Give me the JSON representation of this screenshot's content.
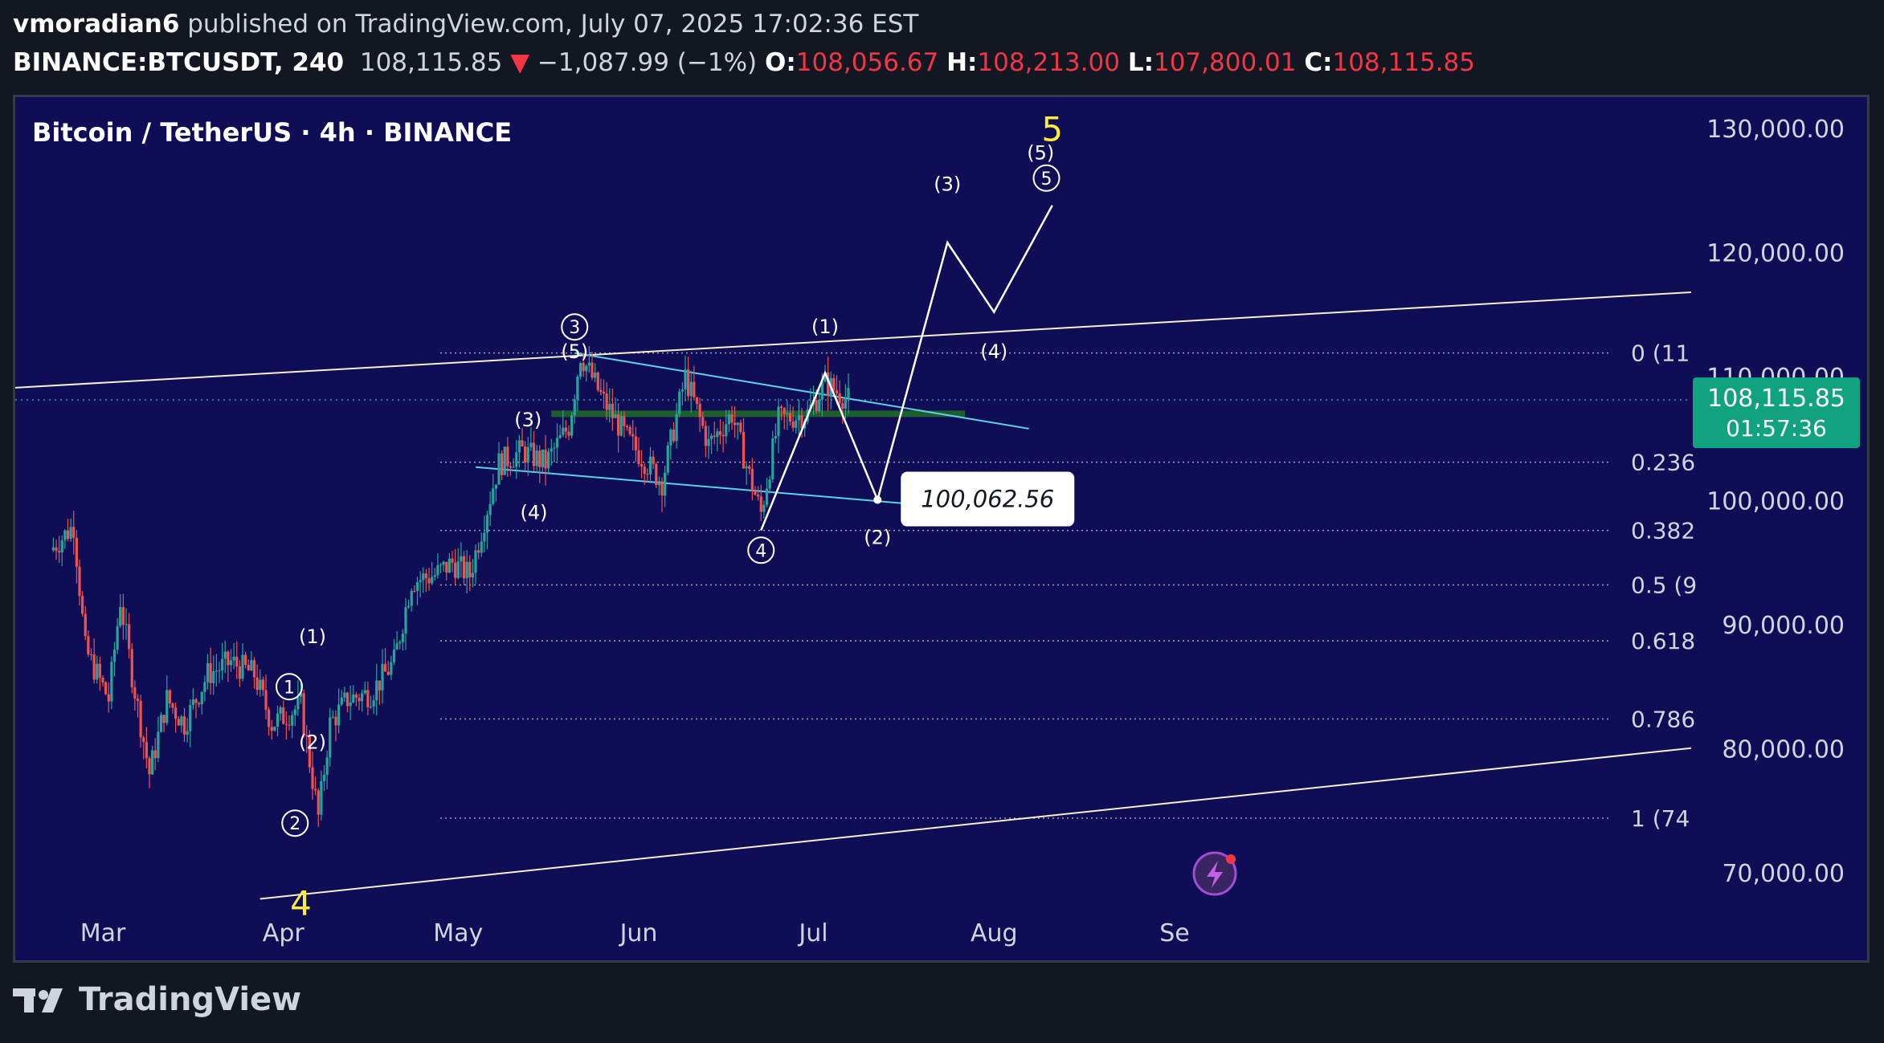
{
  "header": {
    "author": "vmoradian6",
    "published_text": "published on TradingView.com, July 07, 2025 17:02:36 EST",
    "symbol": "BINANCE:BTCUSDT, 240",
    "last": "108,115.85",
    "change_arrow": "▼",
    "change": "−1,087.99 (−1%)",
    "o_label": "O:",
    "o": "108,056.67",
    "h_label": "H:",
    "h": "108,213.00",
    "l_label": "L:",
    "l": "107,800.01",
    "c_label": "C:",
    "c": "108,115.85"
  },
  "chart_data": {
    "type": "candlestick",
    "title": "Bitcoin / TetherUS · 4h · BINANCE",
    "x_ticks": [
      "Mar",
      "Apr",
      "May",
      "Jun",
      "Jul",
      "Aug",
      "Se"
    ],
    "y_ticks": [
      "70,000.00",
      "80,000.00",
      "90,000.00",
      "100,000.00",
      "110,000.00",
      "120,000.00",
      "130,000.00"
    ],
    "ylim": [
      66000,
      133000
    ],
    "price_series": [
      {
        "date": "2025-02-20",
        "price": 96000
      },
      {
        "date": "2025-02-24",
        "price": 98000
      },
      {
        "date": "2025-02-26",
        "price": 88000
      },
      {
        "date": "2025-03-02",
        "price": 84000
      },
      {
        "date": "2025-03-04",
        "price": 92000
      },
      {
        "date": "2025-03-06",
        "price": 86000
      },
      {
        "date": "2025-03-09",
        "price": 78000
      },
      {
        "date": "2025-03-12",
        "price": 84000
      },
      {
        "date": "2025-03-15",
        "price": 82000
      },
      {
        "date": "2025-03-19",
        "price": 86000
      },
      {
        "date": "2025-03-23",
        "price": 87000
      },
      {
        "date": "2025-03-27",
        "price": 86000
      },
      {
        "date": "2025-03-30",
        "price": 82000
      },
      {
        "date": "2025-04-04",
        "price": 83500
      },
      {
        "date": "2025-04-07",
        "price": 74500
      },
      {
        "date": "2025-04-09",
        "price": 82000
      },
      {
        "date": "2025-04-12",
        "price": 84000
      },
      {
        "date": "2025-04-16",
        "price": 84500
      },
      {
        "date": "2025-04-20",
        "price": 87000
      },
      {
        "date": "2025-04-23",
        "price": 93500
      },
      {
        "date": "2025-04-27",
        "price": 94000
      },
      {
        "date": "2025-04-30",
        "price": 95000
      },
      {
        "date": "2025-05-03",
        "price": 94000
      },
      {
        "date": "2025-05-08",
        "price": 103000
      },
      {
        "date": "2025-05-12",
        "price": 104000
      },
      {
        "date": "2025-05-16",
        "price": 103000
      },
      {
        "date": "2025-05-20",
        "price": 106000
      },
      {
        "date": "2025-05-22",
        "price": 111800
      },
      {
        "date": "2025-05-26",
        "price": 108000
      },
      {
        "date": "2025-05-30",
        "price": 105000
      },
      {
        "date": "2025-06-05",
        "price": 101500
      },
      {
        "date": "2025-06-09",
        "price": 110000
      },
      {
        "date": "2025-06-13",
        "price": 104500
      },
      {
        "date": "2025-06-17",
        "price": 107000
      },
      {
        "date": "2025-06-20",
        "price": 102000
      },
      {
        "date": "2025-06-22",
        "price": 99000
      },
      {
        "date": "2025-06-25",
        "price": 106500
      },
      {
        "date": "2025-06-30",
        "price": 107000
      },
      {
        "date": "2025-07-03",
        "price": 109500
      },
      {
        "date": "2025-07-07",
        "price": 108116
      }
    ],
    "last_price": "108,115.85",
    "countdown": "01:57:36",
    "support_zone_price": 107000,
    "fib_levels": [
      {
        "label": "0 (11",
        "price": 111900
      },
      {
        "label": "0.236",
        "price": 103100
      },
      {
        "label": "0.382",
        "price": 97600
      },
      {
        "label": "0.5 (9",
        "price": 93200
      },
      {
        "label": "0.618",
        "price": 88700
      },
      {
        "label": "0.786",
        "price": 82400
      },
      {
        "label": "1 (74",
        "price": 74400
      }
    ],
    "price_label": "100,062.56",
    "wave_labels": {
      "circled": [
        {
          "text": "1",
          "date": "2025-04-02",
          "price": 85000
        },
        {
          "text": "2",
          "date": "2025-04-03",
          "price": 74000
        },
        {
          "text": "3",
          "date": "2025-05-21",
          "price": 114000
        },
        {
          "text": "4",
          "date": "2025-06-22",
          "price": 96000
        },
        {
          "text": "5",
          "date": "2025-08-10",
          "price": 126000
        }
      ],
      "parenthesized": [
        {
          "text": "(1)",
          "date": "2025-04-06",
          "price": 88500
        },
        {
          "text": "(2)",
          "date": "2025-04-06",
          "price": 80000
        },
        {
          "text": "(3)",
          "date": "2025-05-13",
          "price": 106000
        },
        {
          "text": "(4)",
          "date": "2025-05-14",
          "price": 98500
        },
        {
          "text": "(5)",
          "date": "2025-05-21",
          "price": 111500
        },
        {
          "text": "(1)",
          "date": "2025-07-03",
          "price": 113500
        },
        {
          "text": "(2)",
          "date": "2025-07-12",
          "price": 96500
        },
        {
          "text": "(3)",
          "date": "2025-07-24",
          "price": 125000
        },
        {
          "text": "(4)",
          "date": "2025-08-01",
          "price": 111500
        },
        {
          "text": "(5)",
          "date": "2025-08-09",
          "price": 127500
        }
      ],
      "yellow": [
        {
          "text": "4",
          "date": "2025-04-04",
          "price": 66600
        },
        {
          "text": "5",
          "date": "2025-08-11",
          "price": 129000
        }
      ]
    }
  },
  "footer": {
    "brand": "TradingView"
  },
  "colors": {
    "background": "#131722",
    "plot": "#0f0d55",
    "up": "#26a69a",
    "down": "#ef5350",
    "zone": "#1e5e2a",
    "cyan": "#5ad1e8",
    "yellow": "#ffeb3b",
    "price_badge": "#11a37f"
  }
}
